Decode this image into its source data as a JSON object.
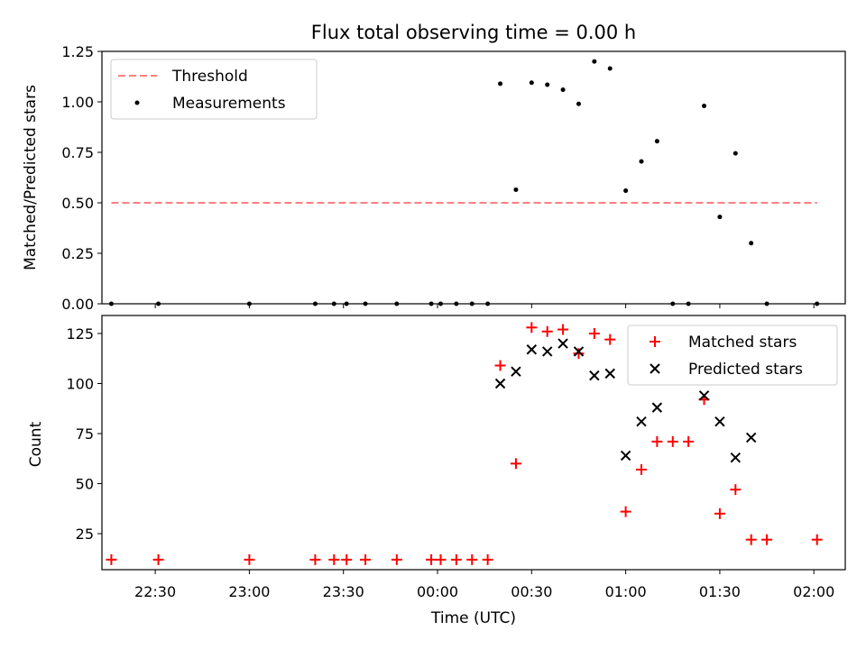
{
  "colors": {
    "threshold": "#ff7f7f",
    "measurement": "#000000",
    "matched": "#ff0000",
    "predicted": "#000000"
  },
  "chart_data": [
    {
      "type": "scatter",
      "title": "Flux total observing time = 0.00 h",
      "xlabel": "",
      "ylabel": "Matched/Predicted stars",
      "ylim": [
        0,
        1.25
      ],
      "xlim": [
        "22:13",
        "02:10"
      ],
      "y_ticks": [
        "0.00",
        "0.25",
        "0.50",
        "0.75",
        "1.00",
        "1.25"
      ],
      "legend_position": "upper left",
      "series": [
        {
          "name": "Threshold",
          "style": "dashed line",
          "x": [
            "22:16",
            "02:01"
          ],
          "y": [
            0.5,
            0.5
          ]
        },
        {
          "name": "Measurements",
          "style": "dots",
          "x": [
            "22:16",
            "22:31",
            "23:00",
            "23:21",
            "23:27",
            "23:31",
            "23:37",
            "23:47",
            "23:58",
            "00:01",
            "00:06",
            "00:11",
            "00:16",
            "00:20",
            "00:25",
            "00:30",
            "00:35",
            "00:40",
            "00:45",
            "00:50",
            "00:55",
            "01:00",
            "01:05",
            "01:10",
            "01:15",
            "01:20",
            "01:25",
            "01:30",
            "01:35",
            "01:40",
            "01:45",
            "02:01"
          ],
          "y": [
            0,
            0,
            0,
            0,
            0,
            0,
            0,
            0,
            0,
            0,
            0,
            0,
            0,
            1.09,
            0.565,
            1.095,
            1.085,
            1.06,
            0.99,
            1.2,
            1.165,
            0.56,
            0.705,
            0.805,
            0,
            0,
            0.98,
            0.43,
            0.745,
            0.3,
            0,
            0
          ]
        }
      ]
    },
    {
      "type": "scatter",
      "title": "",
      "xlabel": "Time (UTC)",
      "ylabel": "Count",
      "ylim": [
        7,
        134
      ],
      "xlim": [
        "22:13",
        "02:10"
      ],
      "y_ticks": [
        "25",
        "50",
        "75",
        "100",
        "125"
      ],
      "x_ticks": [
        "22:30",
        "23:00",
        "23:30",
        "00:00",
        "00:30",
        "01:00",
        "01:30",
        "02:00"
      ],
      "legend_position": "upper right",
      "series": [
        {
          "name": "Matched stars",
          "style": "plus",
          "x": [
            "22:16",
            "22:31",
            "23:00",
            "23:21",
            "23:27",
            "23:31",
            "23:37",
            "23:47",
            "23:58",
            "00:01",
            "00:06",
            "00:11",
            "00:16",
            "00:20",
            "00:25",
            "00:30",
            "00:35",
            "00:40",
            "00:45",
            "00:50",
            "00:55",
            "01:00",
            "01:05",
            "01:10",
            "01:15",
            "01:20",
            "01:25",
            "01:30",
            "01:35",
            "01:40",
            "01:45",
            "02:01"
          ],
          "y": [
            12,
            12,
            12,
            12,
            12,
            12,
            12,
            12,
            12,
            12,
            12,
            12,
            12,
            109,
            60,
            128,
            126,
            127,
            115,
            125,
            122,
            36,
            57,
            71,
            71,
            71,
            92,
            35,
            47,
            22,
            22,
            22
          ]
        },
        {
          "name": "Predicted stars",
          "style": "x",
          "x": [
            "00:20",
            "00:25",
            "00:30",
            "00:35",
            "00:40",
            "00:45",
            "00:50",
            "00:55",
            "01:00",
            "01:05",
            "01:10",
            "01:25",
            "01:30",
            "01:35",
            "01:40"
          ],
          "y": [
            100,
            106,
            117,
            116,
            120,
            116,
            104,
            105,
            64,
            81,
            88,
            94,
            81,
            63,
            73
          ]
        }
      ]
    }
  ]
}
